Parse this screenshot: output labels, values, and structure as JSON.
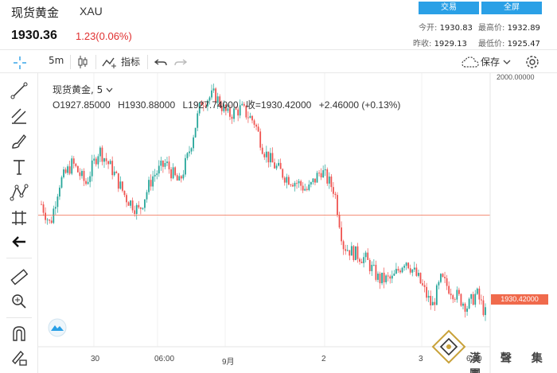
{
  "header": {
    "instrument_name": "现货黄金",
    "instrument_code": "XAU",
    "last_price": "1930.36",
    "change": "1.23(0.06%)",
    "trade_button": "交易",
    "fullscreen_button": "全屏",
    "stats": {
      "open_label": "今开:",
      "open_value": "1930.83",
      "high_label": "最高价:",
      "high_value": "1932.89",
      "prev_close_label": "昨收:",
      "prev_close_value": "1929.13",
      "low_label": "最低价:",
      "low_value": "1925.47"
    }
  },
  "toolbar": {
    "interval": "5m",
    "indicators_label": "指标",
    "save_label": "保存",
    "icons": [
      "candle-type-icon",
      "add-indicator-icon",
      "undo-icon",
      "redo-icon",
      "cloud-save-icon",
      "settings-icon"
    ]
  },
  "rail": {
    "icons": [
      "crosshair-icon",
      "trend-line-icon",
      "fib-tool-icon",
      "brush-icon",
      "text-icon",
      "pattern-icon",
      "measure-icon",
      "back-arrow-icon",
      "ruler-icon",
      "zoom-in-icon",
      "magnet-icon",
      "pencil-lock-icon"
    ]
  },
  "chart": {
    "legend_title": "现货黄金, 5",
    "ohlc": {
      "open": "O1927.85000",
      "high": "H1930.88000",
      "low": "L1927.74000",
      "close": "收=1930.42000",
      "change": "+2.46000 (+0.13%)"
    },
    "axis_top_label": "2000.00000",
    "current_price_tag": "1930.42000",
    "x_labels": [
      "30",
      "06:00",
      "9月",
      "2",
      "3",
      "6:00"
    ],
    "watermark_text": "漢 聲 集 團",
    "colors": {
      "up": "#26a69a",
      "down": "#ef5350",
      "price_line": "#f06a4c",
      "accent": "#2aa0e6"
    }
  },
  "chart_data": {
    "type": "candlestick",
    "title": "现货黄金, 5",
    "y_unit": "USD",
    "x_ticks": [
      "30",
      "06:00",
      "9月",
      "2",
      "3",
      "6:00"
    ],
    "ylim": [
      1912,
      1950
    ],
    "current": 1930.42,
    "path": [
      [
        0,
        1932
      ],
      [
        0.02,
        1929
      ],
      [
        0.04,
        1935
      ],
      [
        0.07,
        1938
      ],
      [
        0.1,
        1935
      ],
      [
        0.13,
        1940
      ],
      [
        0.16,
        1937
      ],
      [
        0.19,
        1933
      ],
      [
        0.22,
        1931
      ],
      [
        0.25,
        1936
      ],
      [
        0.28,
        1938
      ],
      [
        0.31,
        1935
      ],
      [
        0.33,
        1939
      ],
      [
        0.36,
        1947
      ],
      [
        0.39,
        1948
      ],
      [
        0.42,
        1945
      ],
      [
        0.45,
        1946
      ],
      [
        0.48,
        1944
      ],
      [
        0.5,
        1940
      ],
      [
        0.52,
        1938
      ],
      [
        0.55,
        1936
      ],
      [
        0.58,
        1935
      ],
      [
        0.6,
        1934
      ],
      [
        0.63,
        1937
      ],
      [
        0.66,
        1934
      ],
      [
        0.68,
        1926
      ],
      [
        0.7,
        1925
      ],
      [
        0.73,
        1924
      ],
      [
        0.76,
        1921
      ],
      [
        0.79,
        1921
      ],
      [
        0.82,
        1924
      ],
      [
        0.85,
        1921
      ],
      [
        0.88,
        1917
      ],
      [
        0.9,
        1921
      ],
      [
        0.93,
        1919
      ],
      [
        0.96,
        1917
      ],
      [
        0.98,
        1919
      ],
      [
        1.0,
        1916
      ]
    ]
  }
}
